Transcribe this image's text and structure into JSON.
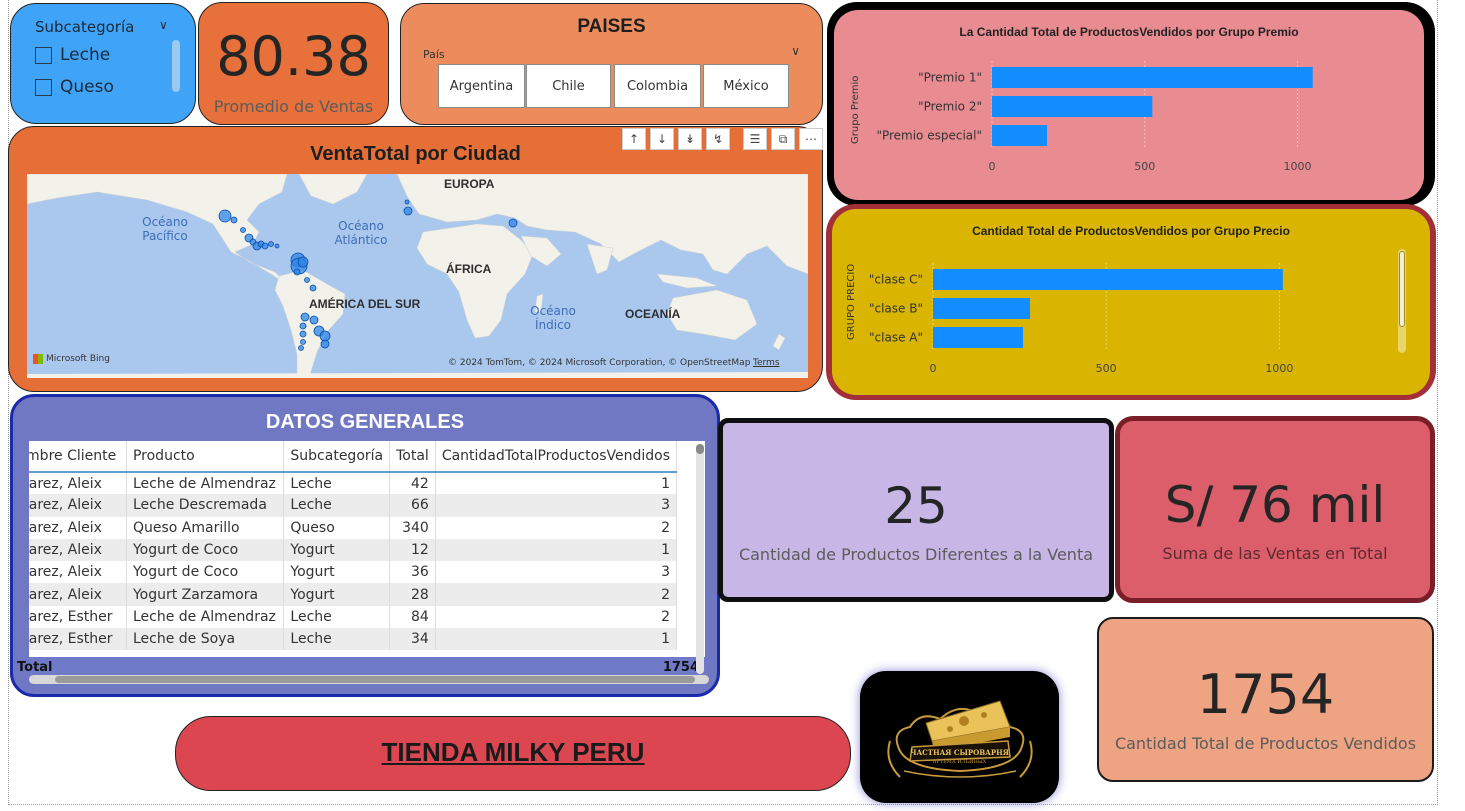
{
  "slicer": {
    "title": "Subcategoría",
    "items": [
      "Leche",
      "Queso"
    ]
  },
  "kpi_promedio": {
    "value": "80.38",
    "label": "Promedio de Ventas"
  },
  "paises": {
    "title": "PAISES",
    "field_label": "País",
    "options": [
      "Argentina",
      "Chile",
      "Colombia",
      "México"
    ]
  },
  "map": {
    "title": "VentaTotal por Ciudad",
    "labels": {
      "europa": "EUROPA",
      "africa": "ÁFRICA",
      "america_sur": "AMÉRICA DEL SUR",
      "oceania": "OCEANÍA"
    },
    "oceans": {
      "pacifico": "Océano Pacífico",
      "atlantico": "Océano Atlántico",
      "indico": "Océano Índico"
    },
    "bing": "Microsoft Bing",
    "copyright": "© 2024 TomTom, © 2024 Microsoft Corporation, © OpenStreetMap",
    "terms": "Terms"
  },
  "premio_chart": {
    "chart_data": {
      "type": "bar",
      "orientation": "horizontal",
      "title": "La Cantidad Total de ProductosVendidos por Grupo Premio",
      "ylabel": "Grupo Premio",
      "xlabel": "",
      "categories": [
        "\"Premio 1\"",
        "\"Premio 2\"",
        "\"Premio especial\""
      ],
      "values": [
        1050,
        525,
        180
      ],
      "xlim": [
        0,
        1100
      ],
      "xticks": [
        "0",
        "500",
        "1000"
      ],
      "color": "#118dff"
    }
  },
  "precio_chart": {
    "chart_data": {
      "type": "bar",
      "orientation": "horizontal",
      "title": "Cantidad Total de ProductosVendidos por Grupo Precio",
      "ylabel": "GRUPO PRECIO",
      "xlabel": "",
      "categories": [
        "\"clase C\"",
        "\"clase B\"",
        "\"clase A\""
      ],
      "values": [
        1010,
        280,
        260
      ],
      "xlim": [
        0,
        1100
      ],
      "xticks": [
        "0",
        "500",
        "1000"
      ],
      "color": "#118dff"
    }
  },
  "datos": {
    "title": "DATOS GENERALES",
    "columns": [
      "Nombre Cliente",
      "Producto",
      "Subcategoría",
      "Total",
      "CantidadTotalProductosVendidos"
    ],
    "rows": [
      [
        "Álvarez, Aleix",
        "Leche de Almendraz",
        "Leche",
        "42",
        "1"
      ],
      [
        "Álvarez, Aleix",
        "Leche Descremada",
        "Leche",
        "66",
        "3"
      ],
      [
        "Álvarez, Aleix",
        "Queso Amarillo",
        "Queso",
        "340",
        "2"
      ],
      [
        "Álvarez, Aleix",
        "Yogurt de Coco",
        "Yogurt",
        "12",
        "1"
      ],
      [
        "Álvarez, Aleix",
        "Yogurt de Coco",
        "Yogurt",
        "36",
        "3"
      ],
      [
        "Álvarez, Aleix",
        "Yogurt Zarzamora",
        "Yogurt",
        "28",
        "2"
      ],
      [
        "Álvarez, Esther",
        "Leche de Almendraz",
        "Leche",
        "84",
        "2"
      ],
      [
        "Álvarez, Esther",
        "Leche de Soya",
        "Leche",
        "34",
        "1"
      ]
    ],
    "total_label": "Total",
    "total_value": "1754"
  },
  "kpi_diferentes": {
    "value": "25",
    "label": "Cantidad de Productos Diferentes a la Venta"
  },
  "kpi_suma": {
    "value": "S/ 76 mil",
    "label": "Suma  de las  Ventas en Total"
  },
  "kpi_cantidad": {
    "value": "1754",
    "label": "Cantidad Total de Productos Vendidos"
  },
  "tienda": {
    "title": "TIENDA MILKY PERU"
  },
  "logo": {
    "text_line1": "ЧАСТНАЯ СЫРОВАРНЯ",
    "text_line2": "АРТЁМА ИЛЬИНЫХ"
  }
}
